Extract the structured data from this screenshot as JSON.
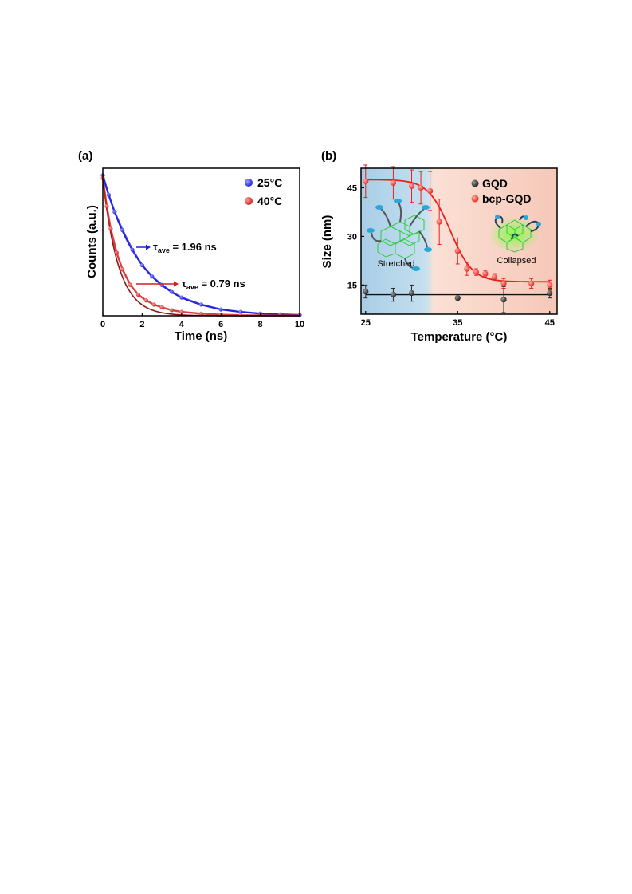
{
  "chart_data": [
    {
      "panel": "(a)",
      "type": "scatter",
      "xlabel": "Time (ns)",
      "ylabel": "Counts (a.u.)",
      "xlim": [
        0,
        10
      ],
      "ylim": [
        0,
        1.05
      ],
      "xticks": [
        "0",
        "2",
        "4",
        "6",
        "8",
        "10"
      ],
      "legend_position": "top-right",
      "series": [
        {
          "name": "25°C",
          "color": "#1f1fe0",
          "fit_color": "#2d2dd6",
          "tau": 1.96,
          "x": [
            0,
            0.3,
            0.6,
            1.0,
            1.5,
            2.0,
            2.5,
            3.0,
            3.5,
            4.0,
            5.0,
            6.0,
            7.0,
            8.0,
            9.0,
            10.0
          ],
          "y": [
            1.0,
            0.86,
            0.74,
            0.61,
            0.47,
            0.36,
            0.28,
            0.22,
            0.17,
            0.13,
            0.08,
            0.045,
            0.028,
            0.016,
            0.01,
            0.006
          ]
        },
        {
          "name": "40°C",
          "color": "#d01f1f",
          "fit_color": "#8a1a1a",
          "tau": 0.79,
          "x": [
            0,
            0.2,
            0.4,
            0.7,
            1.0,
            1.4,
            1.8,
            2.2,
            2.6,
            3.0,
            3.5,
            4.0,
            5.0,
            6.0,
            7.0
          ],
          "y": [
            0.98,
            0.78,
            0.62,
            0.45,
            0.33,
            0.22,
            0.15,
            0.11,
            0.08,
            0.06,
            0.04,
            0.028,
            0.015,
            0.008,
            0.004
          ]
        }
      ],
      "annotations": [
        {
          "symbol": "τ",
          "sub": "ave",
          "text": " = 1.96 ns",
          "series": "25°C"
        },
        {
          "symbol": "τ",
          "sub": "ave",
          "text": " = 0.79 ns",
          "series": "40°C"
        }
      ]
    },
    {
      "panel": "(b)",
      "type": "scatter",
      "xlabel": "Temperature (°C)",
      "ylabel": "Size (nm)",
      "xlim": [
        24.5,
        45.8
      ],
      "ylim": [
        6,
        51
      ],
      "xticks": [
        25,
        35,
        45
      ],
      "yticks": [
        15,
        30,
        45
      ],
      "legend_position": "top-right",
      "background": {
        "cold_color": "#a9cde6",
        "hot_color": "#f6c8b8",
        "transition_x": 32
      },
      "series": [
        {
          "name": "GQD",
          "color": "#2a2a2a",
          "x": [
            25,
            28,
            30,
            35,
            40,
            45
          ],
          "y": [
            13,
            12,
            12.5,
            11,
            10.5,
            12.5
          ],
          "err": [
            2,
            2,
            2.5,
            0,
            4,
            1.5
          ]
        },
        {
          "name": "bcp-GQD",
          "color": "#e8201c",
          "x": [
            25,
            28,
            30,
            31,
            32,
            33,
            35,
            36,
            37,
            38,
            39,
            40,
            43,
            45
          ],
          "y": [
            47,
            46.5,
            45.5,
            45,
            44,
            34.5,
            25.5,
            20,
            19,
            18.5,
            17.5,
            15.5,
            15.5,
            15
          ],
          "err": [
            5,
            5,
            5,
            5,
            6,
            7,
            4,
            2,
            1,
            1,
            1,
            1.5,
            1.5,
            1.5
          ]
        }
      ],
      "fits": [
        {
          "series": "bcp-GQD",
          "type": "sigmoid",
          "top": 47.5,
          "bottom": 16,
          "x0": 34.2,
          "width": 1.2
        },
        {
          "series": "GQD",
          "type": "constant",
          "value": 12
        }
      ],
      "cartoons": [
        {
          "label": "Stretched"
        },
        {
          "label": "Collapsed"
        }
      ]
    }
  ]
}
